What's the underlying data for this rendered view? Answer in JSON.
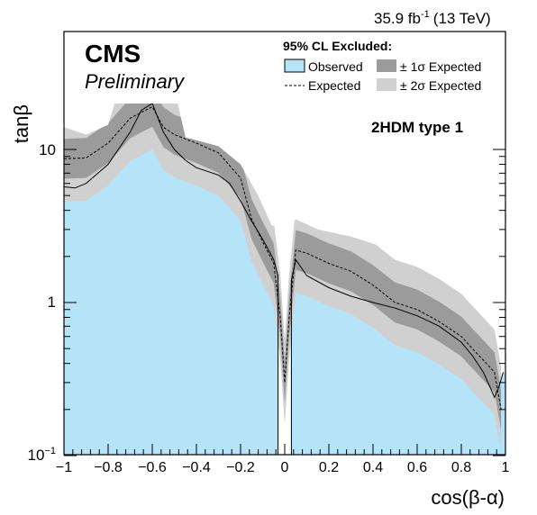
{
  "header": {
    "lumi_value": "35.9 fb",
    "lumi_exp": "-1",
    "energy": "(13 TeV)"
  },
  "labels": {
    "experiment": "CMS",
    "status": "Preliminary",
    "model": "2HDM type 1"
  },
  "legend": {
    "title": "95% CL Excluded:",
    "observed": "Observed",
    "one_sigma": "± 1σ Expected",
    "expected": "Expected",
    "two_sigma": "± 2σ Expected"
  },
  "axes": {
    "xlabel": "cos(β-α)",
    "ylabel": "tanβ",
    "x_ticks": [
      "−1",
      "−0.8",
      "−0.6",
      "−0.4",
      "−0.2",
      "0",
      "0.2",
      "0.4",
      "0.6",
      "0.8",
      "1"
    ],
    "y_tick_10": "10",
    "y_tick_1": "1",
    "y_tick_01_base": "10",
    "y_tick_01_exp": "−1"
  },
  "colors": {
    "observed": "#b5e3f8",
    "one_sigma": "#9b9b9b",
    "two_sigma": "#d0d0d0",
    "expected_line": "#000000"
  },
  "chart_data": {
    "type": "area",
    "xlabel": "cos(β-α)",
    "ylabel": "tanβ",
    "xlim": [
      -1,
      1
    ],
    "ylim": [
      0.1,
      20
    ],
    "yscale": "log",
    "series": [
      {
        "name": "Observed",
        "note": "excluded region boundary (left branch)",
        "x": [
          -1.0,
          -0.95,
          -0.9,
          -0.8,
          -0.7,
          -0.65,
          -0.6,
          -0.55,
          -0.5,
          -0.45,
          -0.4,
          -0.35,
          -0.3,
          -0.25,
          -0.2,
          -0.15,
          -0.1,
          -0.05,
          -0.03,
          -0.03
        ],
        "y": [
          5.7,
          5.6,
          6.0,
          8.0,
          13.0,
          18.0,
          20.0,
          13.0,
          10.0,
          8.5,
          7.6,
          7.2,
          6.8,
          6.0,
          4.6,
          3.4,
          2.6,
          1.9,
          1.5,
          0.1
        ]
      },
      {
        "name": "Observed",
        "note": "excluded region boundary (right branch)",
        "x": [
          0.03,
          0.03,
          0.05,
          0.1,
          0.2,
          0.3,
          0.4,
          0.5,
          0.6,
          0.7,
          0.8,
          0.85,
          0.9,
          0.93,
          0.95,
          0.97,
          0.99
        ],
        "y": [
          0.1,
          1.4,
          1.9,
          1.5,
          1.25,
          1.1,
          1.0,
          0.92,
          0.82,
          0.7,
          0.55,
          0.45,
          0.35,
          0.28,
          0.24,
          0.28,
          0.35
        ]
      },
      {
        "name": "Expected",
        "x": [
          -1.0,
          -0.9,
          -0.8,
          -0.7,
          -0.6,
          -0.55,
          -0.5,
          -0.4,
          -0.3,
          -0.2,
          -0.15,
          -0.1,
          -0.05,
          -0.02,
          0.0,
          0.02,
          0.05,
          0.1,
          0.2,
          0.3,
          0.4,
          0.5,
          0.6,
          0.7,
          0.8,
          0.85,
          0.9,
          0.95,
          0.98
        ],
        "y": [
          8.7,
          8.8,
          11.0,
          16.0,
          19.0,
          14.0,
          12.5,
          11.0,
          9.5,
          6.5,
          3.5,
          2.5,
          1.8,
          0.8,
          0.3,
          0.8,
          2.2,
          2.1,
          1.8,
          1.6,
          1.3,
          1.0,
          0.9,
          0.75,
          0.6,
          0.5,
          0.42,
          0.35,
          0.2
        ]
      }
    ]
  }
}
